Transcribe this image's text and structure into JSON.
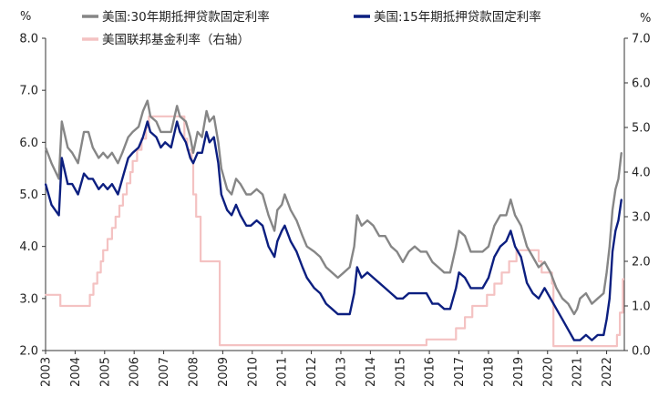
{
  "chart_data": {
    "type": "line",
    "title": "",
    "xlabel": "",
    "ylabel_left_unit": "%",
    "ylabel_right_unit": "%",
    "ylim_left": [
      2.0,
      8.0
    ],
    "ylim_right": [
      0.0,
      7.0
    ],
    "xlim": [
      2003.0,
      2022.6
    ],
    "x_ticks": [
      "2003",
      "2004",
      "2005",
      "2006",
      "2007",
      "2008",
      "2009",
      "2010",
      "2011",
      "2012",
      "2013",
      "2014",
      "2015",
      "2016",
      "2017",
      "2018",
      "2019",
      "2020",
      "2021",
      "2022"
    ],
    "x_tick_values": [
      2003,
      2004,
      2005,
      2006,
      2007,
      2008,
      2009,
      2010,
      2011,
      2012,
      2013,
      2014,
      2015,
      2016,
      2017,
      2018,
      2019,
      2020,
      2021,
      2022
    ],
    "y_ticks_left": [
      "2.0",
      "3.0",
      "4.0",
      "5.0",
      "6.0",
      "7.0",
      "8.0"
    ],
    "y_tick_values_left": [
      2,
      3,
      4,
      5,
      6,
      7,
      8
    ],
    "y_ticks_right": [
      "0.0",
      "1.0",
      "2.0",
      "3.0",
      "4.0",
      "5.0",
      "6.0",
      "7.0"
    ],
    "y_tick_values_right": [
      0,
      1,
      2,
      3,
      4,
      5,
      6,
      7
    ],
    "legend_placement": "top",
    "grid": false,
    "series": [
      {
        "name": "美国:30年期抵押贷款固定利率",
        "axis": "left",
        "color": "#868686",
        "x": [
          2003.0,
          2003.2,
          2003.45,
          2003.55,
          2003.75,
          2003.9,
          2004.1,
          2004.3,
          2004.45,
          2004.6,
          2004.8,
          2004.95,
          2005.1,
          2005.25,
          2005.45,
          2005.6,
          2005.8,
          2005.95,
          2006.15,
          2006.3,
          2006.45,
          2006.55,
          2006.75,
          2006.9,
          2007.05,
          2007.25,
          2007.45,
          2007.55,
          2007.75,
          2007.9,
          2008.0,
          2008.15,
          2008.3,
          2008.45,
          2008.55,
          2008.7,
          2008.85,
          2008.95,
          2009.15,
          2009.3,
          2009.45,
          2009.6,
          2009.8,
          2009.95,
          2010.15,
          2010.35,
          2010.55,
          2010.75,
          2010.85,
          2011.0,
          2011.1,
          2011.3,
          2011.5,
          2011.7,
          2011.85,
          2012.1,
          2012.3,
          2012.5,
          2012.7,
          2012.9,
          2013.1,
          2013.3,
          2013.45,
          2013.55,
          2013.7,
          2013.9,
          2014.1,
          2014.3,
          2014.5,
          2014.7,
          2014.9,
          2015.1,
          2015.3,
          2015.5,
          2015.7,
          2015.9,
          2016.1,
          2016.3,
          2016.5,
          2016.7,
          2016.9,
          2017.0,
          2017.2,
          2017.4,
          2017.6,
          2017.8,
          2018.0,
          2018.2,
          2018.4,
          2018.6,
          2018.75,
          2018.9,
          2019.1,
          2019.3,
          2019.5,
          2019.7,
          2019.9,
          2020.1,
          2020.3,
          2020.5,
          2020.7,
          2020.9,
          2021.0,
          2021.1,
          2021.3,
          2021.5,
          2021.7,
          2021.9,
          2022.0,
          2022.1,
          2022.2,
          2022.3,
          2022.4,
          2022.5
        ],
        "values": [
          5.9,
          5.6,
          5.3,
          6.4,
          5.9,
          5.8,
          5.6,
          6.2,
          6.2,
          5.9,
          5.7,
          5.8,
          5.7,
          5.8,
          5.6,
          5.8,
          6.1,
          6.2,
          6.3,
          6.6,
          6.8,
          6.5,
          6.4,
          6.2,
          6.2,
          6.2,
          6.7,
          6.5,
          6.4,
          6.1,
          5.8,
          6.2,
          6.1,
          6.6,
          6.4,
          6.5,
          6.0,
          5.5,
          5.1,
          5.0,
          5.3,
          5.2,
          5.0,
          5.0,
          5.1,
          5.0,
          4.6,
          4.3,
          4.7,
          4.8,
          5.0,
          4.7,
          4.5,
          4.2,
          4.0,
          3.9,
          3.8,
          3.6,
          3.5,
          3.4,
          3.5,
          3.6,
          4.0,
          4.6,
          4.4,
          4.5,
          4.4,
          4.2,
          4.2,
          4.0,
          3.9,
          3.7,
          3.9,
          4.0,
          3.9,
          3.9,
          3.7,
          3.6,
          3.5,
          3.5,
          4.0,
          4.3,
          4.2,
          3.9,
          3.9,
          3.9,
          4.0,
          4.4,
          4.6,
          4.6,
          4.9,
          4.6,
          4.4,
          4.0,
          3.8,
          3.6,
          3.7,
          3.5,
          3.2,
          3.0,
          2.9,
          2.7,
          2.8,
          3.0,
          3.1,
          2.9,
          3.0,
          3.1,
          3.5,
          4.0,
          4.7,
          5.1,
          5.3,
          5.8
        ]
      },
      {
        "name": "美国:15年期抵押贷款固定利率",
        "axis": "left",
        "color": "#0c1f80",
        "x": [
          2003.0,
          2003.2,
          2003.45,
          2003.55,
          2003.75,
          2003.9,
          2004.1,
          2004.3,
          2004.45,
          2004.6,
          2004.8,
          2004.95,
          2005.1,
          2005.25,
          2005.45,
          2005.6,
          2005.8,
          2005.95,
          2006.15,
          2006.3,
          2006.45,
          2006.55,
          2006.75,
          2006.9,
          2007.05,
          2007.25,
          2007.45,
          2007.55,
          2007.75,
          2007.9,
          2008.0,
          2008.15,
          2008.3,
          2008.45,
          2008.55,
          2008.7,
          2008.85,
          2008.95,
          2009.15,
          2009.3,
          2009.45,
          2009.6,
          2009.8,
          2009.95,
          2010.15,
          2010.35,
          2010.55,
          2010.75,
          2010.85,
          2011.0,
          2011.1,
          2011.3,
          2011.5,
          2011.7,
          2011.85,
          2012.1,
          2012.3,
          2012.5,
          2012.7,
          2012.9,
          2013.1,
          2013.3,
          2013.45,
          2013.55,
          2013.7,
          2013.9,
          2014.1,
          2014.3,
          2014.5,
          2014.7,
          2014.9,
          2015.1,
          2015.3,
          2015.5,
          2015.7,
          2015.9,
          2016.1,
          2016.3,
          2016.5,
          2016.7,
          2016.9,
          2017.0,
          2017.2,
          2017.4,
          2017.6,
          2017.8,
          2018.0,
          2018.2,
          2018.4,
          2018.6,
          2018.75,
          2018.9,
          2019.1,
          2019.3,
          2019.5,
          2019.7,
          2019.9,
          2020.1,
          2020.3,
          2020.5,
          2020.7,
          2020.9,
          2021.0,
          2021.1,
          2021.3,
          2021.5,
          2021.7,
          2021.9,
          2022.0,
          2022.1,
          2022.2,
          2022.3,
          2022.4,
          2022.5
        ],
        "values": [
          5.2,
          4.8,
          4.6,
          5.7,
          5.2,
          5.2,
          5.0,
          5.4,
          5.3,
          5.3,
          5.1,
          5.2,
          5.1,
          5.2,
          5.0,
          5.3,
          5.7,
          5.8,
          5.9,
          6.1,
          6.4,
          6.2,
          6.1,
          5.9,
          6.0,
          5.9,
          6.4,
          6.2,
          6.0,
          5.7,
          5.6,
          5.8,
          5.8,
          6.2,
          6.0,
          6.1,
          5.6,
          5.0,
          4.7,
          4.6,
          4.8,
          4.6,
          4.4,
          4.4,
          4.5,
          4.4,
          4.0,
          3.8,
          4.1,
          4.3,
          4.4,
          4.1,
          3.9,
          3.6,
          3.4,
          3.2,
          3.1,
          2.9,
          2.8,
          2.7,
          2.7,
          2.7,
          3.1,
          3.6,
          3.4,
          3.5,
          3.4,
          3.3,
          3.2,
          3.1,
          3.0,
          3.0,
          3.1,
          3.1,
          3.1,
          3.1,
          2.9,
          2.9,
          2.8,
          2.8,
          3.2,
          3.5,
          3.4,
          3.2,
          3.2,
          3.2,
          3.4,
          3.8,
          4.0,
          4.1,
          4.3,
          4.0,
          3.8,
          3.3,
          3.1,
          3.0,
          3.2,
          3.0,
          2.8,
          2.6,
          2.4,
          2.2,
          2.2,
          2.2,
          2.3,
          2.2,
          2.3,
          2.3,
          2.6,
          3.0,
          3.9,
          4.3,
          4.5,
          4.9
        ]
      },
      {
        "name": "美国联邦基金利率（右轴）",
        "axis": "right",
        "color": "#f4c2c2",
        "x": [
          2003.0,
          2003.5,
          2004.4,
          2004.5,
          2004.62,
          2004.75,
          2004.87,
          2004.95,
          2005.1,
          2005.25,
          2005.37,
          2005.5,
          2005.62,
          2005.75,
          2005.87,
          2005.95,
          2006.1,
          2006.25,
          2006.4,
          2006.5,
          2007.6,
          2007.7,
          2007.8,
          2007.95,
          2008.0,
          2008.1,
          2008.25,
          2008.8,
          2008.9,
          2015.9,
          2016.9,
          2017.2,
          2017.45,
          2017.95,
          2018.2,
          2018.45,
          2018.7,
          2018.95,
          2019.55,
          2019.7,
          2019.8,
          2020.15,
          2020.2,
          2022.2,
          2022.35,
          2022.45,
          2022.55
        ],
        "values": [
          1.25,
          1.0,
          1.0,
          1.25,
          1.5,
          1.75,
          2.0,
          2.25,
          2.5,
          2.75,
          3.0,
          3.25,
          3.5,
          3.75,
          4.0,
          4.25,
          4.5,
          4.75,
          5.0,
          5.25,
          5.25,
          4.75,
          4.5,
          4.25,
          3.5,
          3.0,
          2.0,
          2.0,
          0.12,
          0.25,
          0.5,
          0.75,
          1.0,
          1.25,
          1.5,
          1.75,
          2.0,
          2.25,
          2.25,
          2.0,
          1.75,
          1.5,
          0.1,
          0.1,
          0.35,
          0.85,
          1.6
        ]
      }
    ]
  }
}
